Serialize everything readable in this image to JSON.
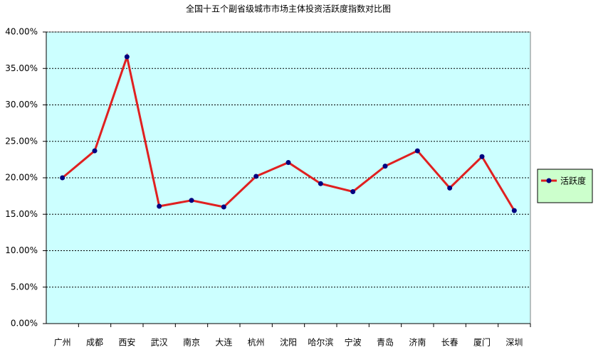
{
  "chart_data": {
    "type": "line",
    "title": "全国十五个副省级城市市场主体投资活跃度指数对比图",
    "categories": [
      "广州",
      "成都",
      "西安",
      "武汉",
      "南京",
      "大连",
      "杭州",
      "沈阳",
      "哈尔滨",
      "宁波",
      "青岛",
      "济南",
      "长春",
      "厦门",
      "深圳"
    ],
    "series": [
      {
        "name": "活跃度",
        "color": "#e02020",
        "marker_color": "#000080",
        "values": [
          20.0,
          23.7,
          36.6,
          16.1,
          16.9,
          16.0,
          20.2,
          22.1,
          19.2,
          18.1,
          21.6,
          23.7,
          18.6,
          22.9,
          15.5
        ]
      }
    ],
    "ylim": [
      0,
      40
    ],
    "yticks": [
      {
        "value": 0,
        "label": "0.00%"
      },
      {
        "value": 5,
        "label": "5.00%"
      },
      {
        "value": 10,
        "label": "10.00%"
      },
      {
        "value": 15,
        "label": "15.00%"
      },
      {
        "value": 20,
        "label": "20.00%"
      },
      {
        "value": 25,
        "label": "25.00%"
      },
      {
        "value": 30,
        "label": "30.00%"
      },
      {
        "value": 35,
        "label": "35.00%"
      },
      {
        "value": 40,
        "label": "40.00%"
      }
    ],
    "grid": true,
    "legend": "right"
  }
}
